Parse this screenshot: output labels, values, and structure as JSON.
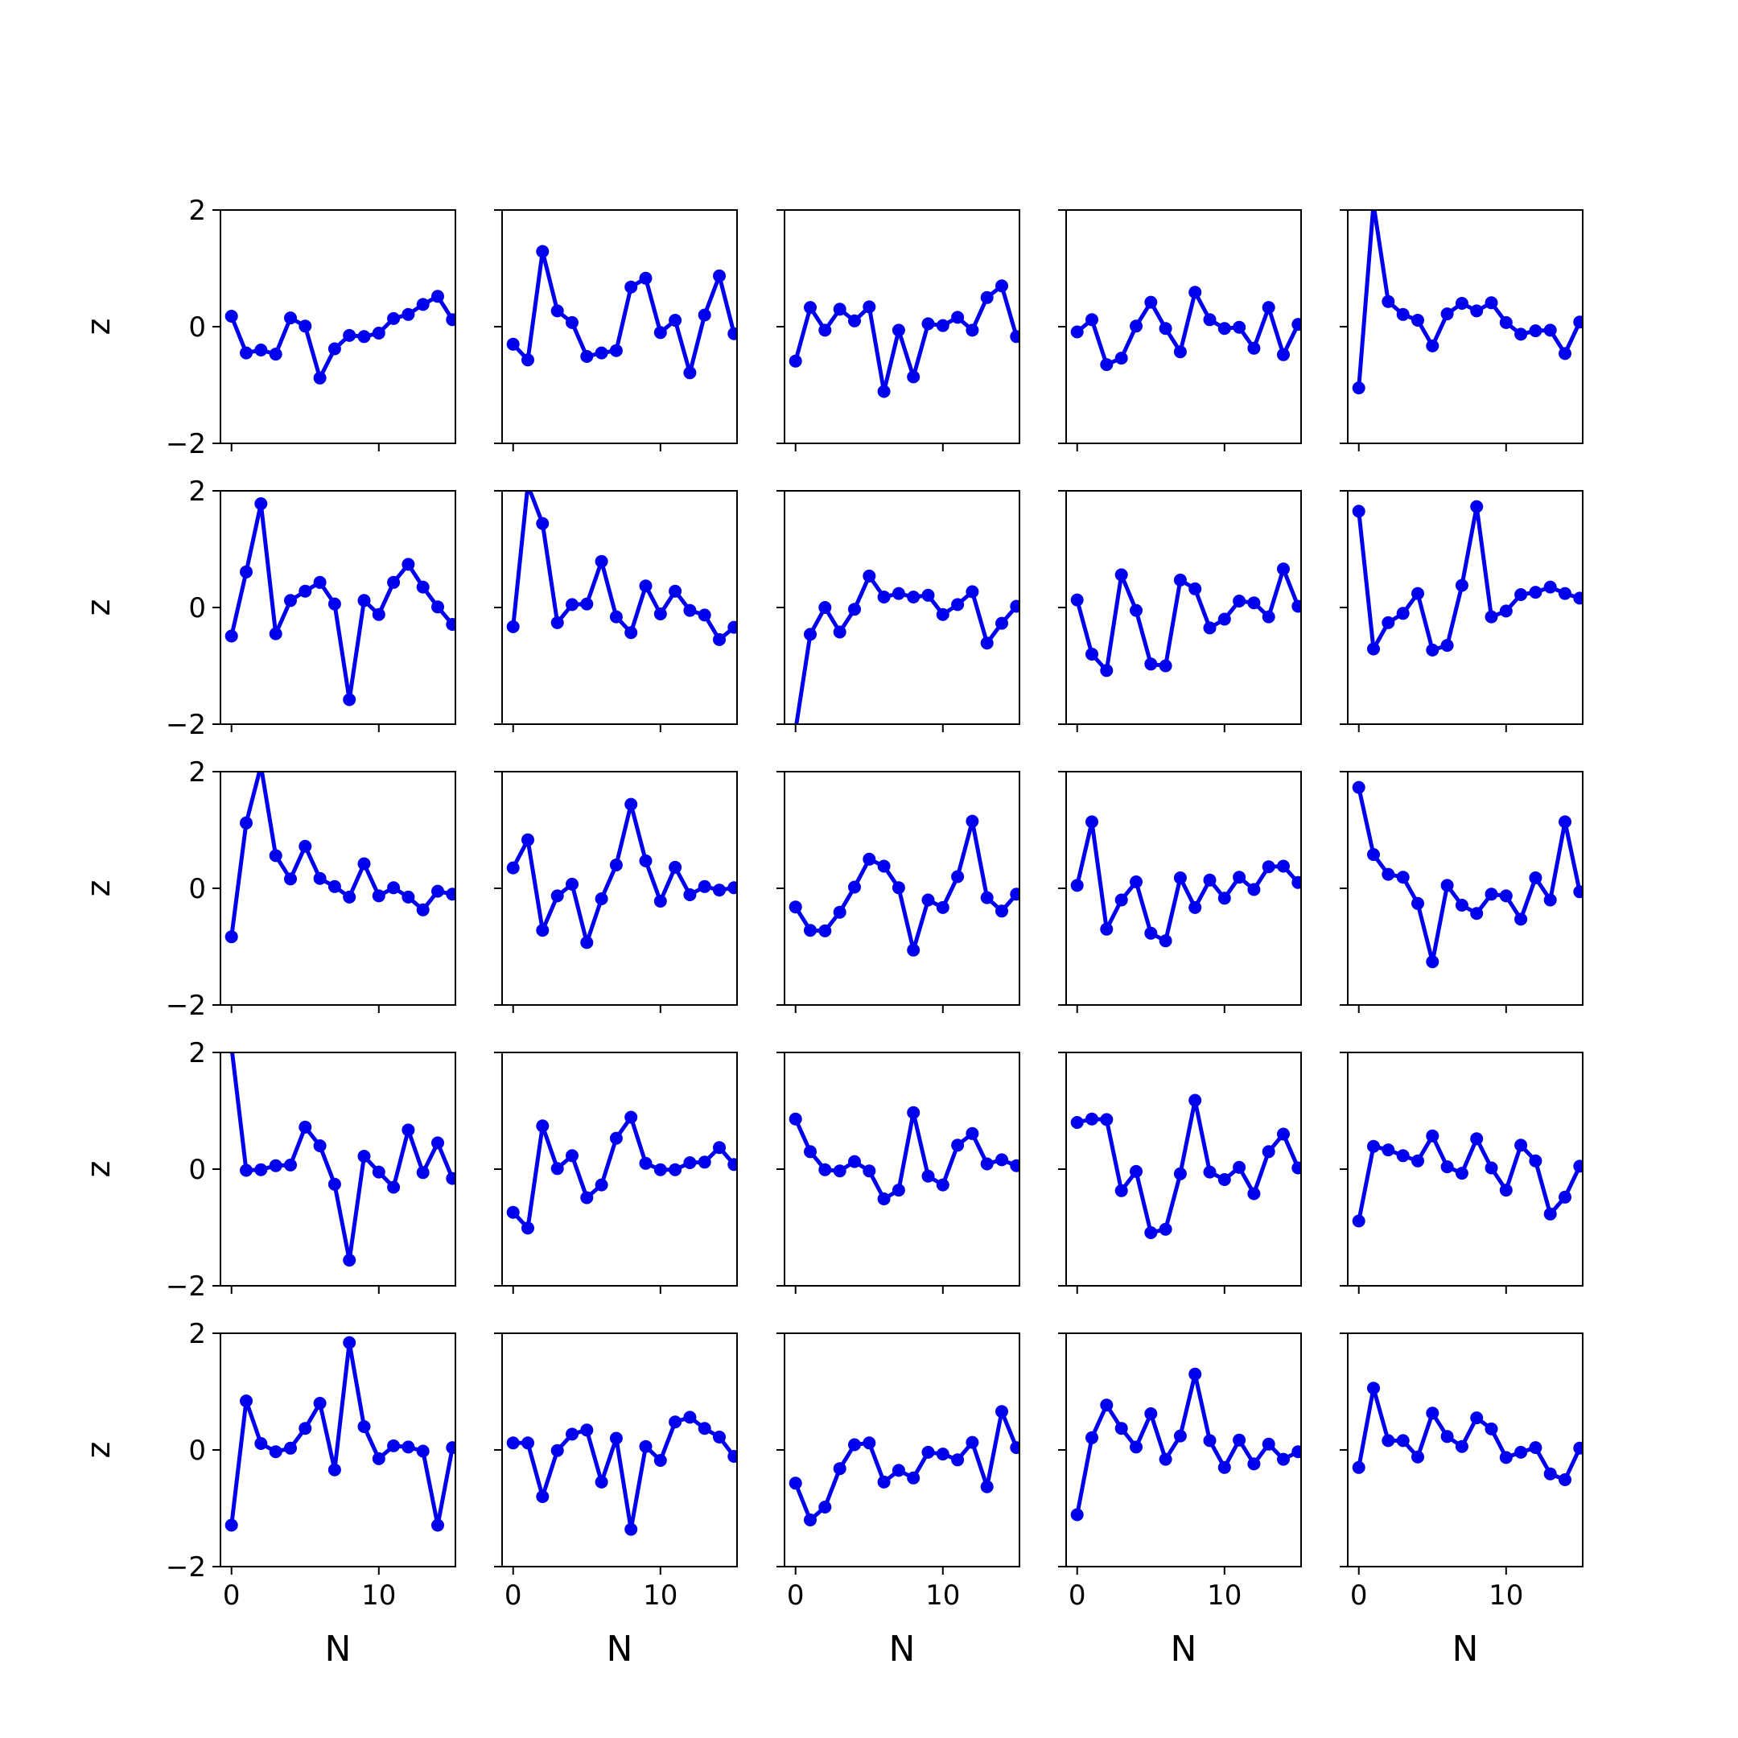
{
  "chart_data": {
    "type": "line",
    "layout": {
      "rows": 5,
      "cols": 5
    },
    "xlabel": "N",
    "ylabel": "z",
    "xlim": [
      -0.75,
      15.2
    ],
    "ylim": [
      -2,
      2
    ],
    "xticks": [
      0,
      10
    ],
    "yticks": [
      -2,
      0,
      2
    ],
    "x": [
      0,
      1,
      2,
      3,
      4,
      5,
      6,
      7,
      8,
      9,
      10,
      11,
      12,
      13,
      14,
      15
    ],
    "line_color": "#0000ee",
    "marker": "circle",
    "panels": [
      {
        "values": [
          0.18,
          -0.45,
          -0.4,
          -0.47,
          0.15,
          0.01,
          -0.88,
          -0.38,
          -0.15,
          -0.17,
          -0.11,
          0.14,
          0.21,
          0.38,
          0.52,
          0.12
        ]
      },
      {
        "values": [
          -0.3,
          -0.57,
          1.29,
          0.27,
          0.07,
          -0.51,
          -0.45,
          -0.41,
          0.68,
          0.83,
          -0.1,
          0.11,
          -0.79,
          0.2,
          0.87,
          -0.12
        ]
      },
      {
        "values": [
          -0.59,
          0.33,
          -0.06,
          0.3,
          0.1,
          0.34,
          -1.11,
          -0.06,
          -0.86,
          0.05,
          0.02,
          0.16,
          -0.06,
          0.5,
          0.7,
          -0.17
        ]
      },
      {
        "values": [
          -0.09,
          0.12,
          -0.65,
          -0.54,
          0.01,
          0.42,
          -0.03,
          -0.43,
          0.59,
          0.12,
          -0.03,
          -0.01,
          -0.37,
          0.33,
          -0.48,
          0.04
        ]
      },
      {
        "values": [
          -1.05,
          2.1,
          0.43,
          0.21,
          0.11,
          -0.33,
          0.22,
          0.4,
          0.27,
          0.41,
          0.07,
          -0.13,
          -0.07,
          -0.06,
          -0.46,
          0.08
        ]
      },
      {
        "values": [
          -0.49,
          0.61,
          1.78,
          -0.45,
          0.12,
          0.28,
          0.43,
          0.06,
          -1.58,
          0.12,
          -0.12,
          0.43,
          0.74,
          0.35,
          0.01,
          -0.29
        ]
      },
      {
        "values": [
          -0.33,
          2.1,
          1.44,
          -0.26,
          0.05,
          0.06,
          0.79,
          -0.16,
          -0.43,
          0.37,
          -0.11,
          0.28,
          -0.05,
          -0.13,
          -0.55,
          -0.34
        ]
      },
      {
        "values": [
          -2.1,
          -0.46,
          0.0,
          -0.42,
          -0.03,
          0.54,
          0.18,
          0.24,
          0.18,
          0.21,
          -0.12,
          0.05,
          0.27,
          -0.61,
          -0.27,
          0.02
        ]
      },
      {
        "values": [
          0.13,
          -0.8,
          -1.08,
          0.56,
          -0.05,
          -0.97,
          -1.0,
          0.47,
          0.32,
          -0.35,
          -0.2,
          0.11,
          0.08,
          -0.16,
          0.66,
          0.02
        ]
      },
      {
        "values": [
          1.65,
          -0.71,
          -0.26,
          -0.1,
          0.24,
          -0.73,
          -0.65,
          0.38,
          1.73,
          -0.16,
          -0.06,
          0.22,
          0.26,
          0.35,
          0.24,
          0.16
        ]
      },
      {
        "values": [
          -0.83,
          1.12,
          2.1,
          0.56,
          0.16,
          0.72,
          0.17,
          0.03,
          -0.15,
          0.42,
          -0.13,
          0.01,
          -0.15,
          -0.37,
          -0.05,
          -0.1
        ]
      },
      {
        "values": [
          0.35,
          0.83,
          -0.72,
          -0.13,
          0.07,
          -0.93,
          -0.18,
          0.4,
          1.44,
          0.47,
          -0.22,
          0.36,
          -0.11,
          0.03,
          -0.03,
          0.01
        ]
      },
      {
        "values": [
          -0.32,
          -0.72,
          -0.73,
          -0.41,
          0.02,
          0.5,
          0.38,
          0.01,
          -1.06,
          -0.2,
          -0.33,
          0.2,
          1.15,
          -0.16,
          -0.39,
          -0.1
        ]
      },
      {
        "values": [
          0.05,
          1.14,
          -0.7,
          -0.2,
          0.11,
          -0.77,
          -0.9,
          0.18,
          -0.33,
          0.14,
          -0.17,
          0.19,
          -0.02,
          0.37,
          0.38,
          0.1
        ]
      },
      {
        "values": [
          1.73,
          0.58,
          0.24,
          0.19,
          -0.26,
          -1.26,
          0.05,
          -0.29,
          -0.43,
          -0.1,
          -0.13,
          -0.53,
          0.18,
          -0.2,
          1.14,
          -0.06
        ]
      },
      {
        "values": [
          2.1,
          -0.02,
          -0.01,
          0.06,
          0.07,
          0.72,
          0.4,
          -0.26,
          -1.56,
          0.22,
          -0.05,
          -0.31,
          0.67,
          -0.06,
          0.45,
          -0.16
        ]
      },
      {
        "values": [
          -0.74,
          -1.01,
          0.74,
          0.01,
          0.23,
          -0.49,
          -0.27,
          0.53,
          0.89,
          0.1,
          -0.01,
          -0.01,
          0.11,
          0.12,
          0.37,
          0.08
        ]
      },
      {
        "values": [
          0.86,
          0.3,
          -0.01,
          -0.03,
          0.13,
          -0.03,
          -0.51,
          -0.36,
          0.97,
          -0.12,
          -0.27,
          0.41,
          0.61,
          0.09,
          0.16,
          0.06
        ]
      },
      {
        "values": [
          0.8,
          0.86,
          0.85,
          -0.37,
          -0.04,
          -1.09,
          -1.03,
          -0.08,
          1.18,
          -0.05,
          -0.18,
          0.03,
          -0.42,
          0.3,
          0.6,
          0.02
        ]
      },
      {
        "values": [
          -0.89,
          0.39,
          0.33,
          0.23,
          0.14,
          0.57,
          0.04,
          -0.07,
          0.52,
          0.02,
          -0.36,
          0.41,
          0.14,
          -0.77,
          -0.48,
          0.05
        ]
      },
      {
        "values": [
          -1.29,
          0.84,
          0.11,
          -0.03,
          0.03,
          0.37,
          0.8,
          -0.34,
          1.84,
          0.4,
          -0.15,
          0.07,
          0.05,
          -0.02,
          -1.29,
          0.04
        ]
      },
      {
        "values": [
          0.12,
          0.12,
          -0.8,
          -0.01,
          0.27,
          0.34,
          -0.55,
          0.2,
          -1.36,
          0.06,
          -0.18,
          0.48,
          0.56,
          0.37,
          0.22,
          -0.11
        ]
      },
      {
        "values": [
          -0.57,
          -1.2,
          -0.98,
          -0.32,
          0.09,
          0.12,
          -0.55,
          -0.35,
          -0.48,
          -0.04,
          -0.07,
          -0.17,
          0.13,
          -0.63,
          0.66,
          0.04
        ]
      },
      {
        "values": [
          -1.11,
          0.21,
          0.77,
          0.37,
          0.05,
          0.62,
          -0.16,
          0.24,
          1.3,
          0.16,
          -0.3,
          0.17,
          -0.24,
          0.1,
          -0.16,
          -0.03
        ]
      },
      {
        "values": [
          -0.3,
          1.06,
          0.16,
          0.16,
          -0.12,
          0.63,
          0.23,
          0.06,
          0.55,
          0.36,
          -0.13,
          -0.04,
          0.04,
          -0.41,
          -0.51,
          0.03
        ]
      }
    ]
  }
}
